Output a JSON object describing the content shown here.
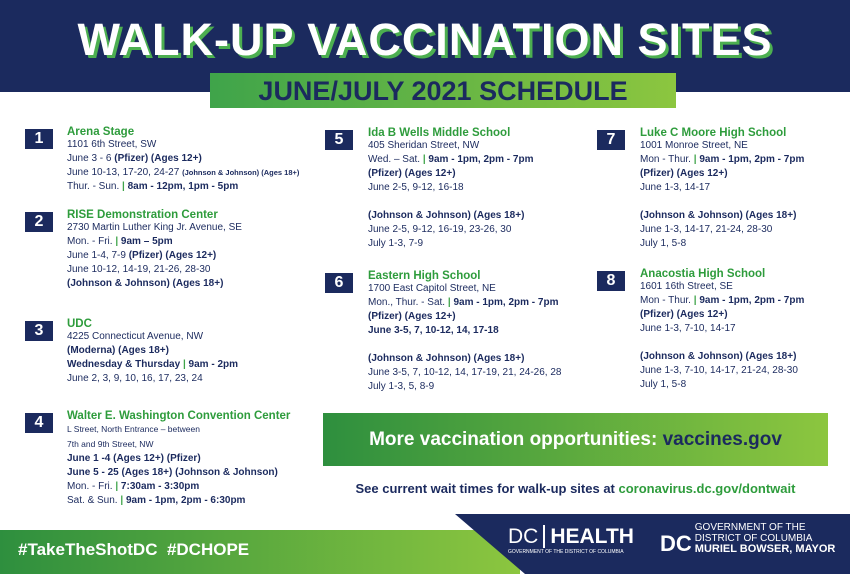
{
  "header": {
    "title": "WALK-UP VACCINATION SITES",
    "subtitle": "JUNE/JULY 2021 SCHEDULE"
  },
  "sites": [
    {
      "number": 1,
      "name": "Arena Stage",
      "blocks": [
        [
          [
            {
              "t": "1101 6th Street, SW"
            }
          ],
          [
            {
              "t": "June 3 - 6 "
            },
            {
              "t": "(Pfizer) (Ages 12+)",
              "s": "b"
            }
          ],
          [
            {
              "t": "June 10-13, 17-20, 24-27 "
            },
            {
              "t": "(Johnson & Johnson) (Ages 18+)",
              "s": "sm"
            }
          ],
          [
            {
              "t": "Thur. - Sun. "
            },
            {
              "t": "|",
              "s": "p"
            },
            {
              "t": " 8am - 12pm, 1pm - 5pm",
              "s": "b"
            }
          ]
        ]
      ]
    },
    {
      "number": 2,
      "name": "RISE Demonstration Center",
      "blocks": [
        [
          [
            {
              "t": "2730 Martin Luther King Jr. Avenue, SE"
            }
          ],
          [
            {
              "t": "Mon. - Fri. "
            },
            {
              "t": "|",
              "s": "p"
            },
            {
              "t": " 9am – 5pm",
              "s": "b"
            }
          ],
          [
            {
              "t": "June 1-4, 7-9 "
            },
            {
              "t": "(Pfizer) (Ages 12+)",
              "s": "b"
            }
          ],
          [
            {
              "t": "June 10-12, 14-19, 21-26, 28-30"
            }
          ],
          [
            {
              "t": "(Johnson & Johnson) (Ages 18+)",
              "s": "b"
            }
          ]
        ]
      ]
    },
    {
      "number": 3,
      "name": "UDC",
      "blocks": [
        [
          [
            {
              "t": "4225 Connecticut Avenue, NW"
            }
          ],
          [
            {
              "t": "(Moderna) (Ages 18+)",
              "s": "b"
            }
          ],
          [
            {
              "t": "Wednesday & Thursday ",
              "s": "b"
            },
            {
              "t": "|",
              "s": "p"
            },
            {
              "t": " 9am - 2pm",
              "s": "b"
            }
          ],
          [
            {
              "t": "June 2, 3, 9, 10, 16, 17, 23, 24"
            }
          ]
        ]
      ]
    },
    {
      "number": 4,
      "name": "Walter E. Washington Convention Center",
      "blocks": [
        [
          [
            {
              "t": "L Street, North Entrance – between",
              "s": "small"
            }
          ],
          [
            {
              "t": "7th and 9th Street, NW",
              "s": "small"
            }
          ],
          [
            {
              "t": "June 1 -4 (Ages 12+) (Pfizer)",
              "s": "b"
            }
          ],
          [
            {
              "t": "June 5 - 25 (Ages 18+) (Johnson & Johnson)",
              "s": "b"
            }
          ],
          [
            {
              "t": "Mon. - Fri. "
            },
            {
              "t": "|",
              "s": "p"
            },
            {
              "t": " 7:30am - 3:30pm",
              "s": "b"
            }
          ],
          [
            {
              "t": "Sat. & Sun. "
            },
            {
              "t": "|",
              "s": "p"
            },
            {
              "t": " 9am - 1pm, 2pm - 6:30pm",
              "s": "b"
            }
          ]
        ]
      ]
    },
    {
      "number": 5,
      "name": "Ida B Wells Middle School",
      "blocks": [
        [
          [
            {
              "t": "405 Sheridan Street, NW"
            }
          ],
          [
            {
              "t": "Wed. – Sat. "
            },
            {
              "t": "|",
              "s": "p"
            },
            {
              "t": " 9am - 1pm, 2pm - 7pm",
              "s": "b"
            }
          ],
          [
            {
              "t": "(Pfizer) (Ages 12+)",
              "s": "b"
            }
          ],
          [
            {
              "t": "June 2-5, 9-12, 16-18"
            }
          ]
        ],
        [
          [
            {
              "t": "(Johnson & Johnson) (Ages 18+)",
              "s": "b"
            }
          ],
          [
            {
              "t": "June 2-5, 9-12, 16-19, 23-26, 30"
            }
          ],
          [
            {
              "t": "July 1-3, 7-9"
            }
          ]
        ]
      ]
    },
    {
      "number": 6,
      "name": "Eastern High School",
      "blocks": [
        [
          [
            {
              "t": "1700 East Capitol Street, NE"
            }
          ],
          [
            {
              "t": "Mon., Thur. - Sat. "
            },
            {
              "t": "|",
              "s": "p"
            },
            {
              "t": " 9am - 1pm, 2pm - 7pm",
              "s": "b"
            }
          ],
          [
            {
              "t": "(Pfizer) (Ages 12+)",
              "s": "b"
            }
          ],
          [
            {
              "t": "June 3-5, 7, 10-12, 14, 17-18",
              "s": "b"
            }
          ]
        ],
        [
          [
            {
              "t": "(Johnson & Johnson) (Ages 18+)",
              "s": "b"
            }
          ],
          [
            {
              "t": "June 3-5, 7, 10-12, 14, 17-19, 21, 24-26, 28"
            }
          ],
          [
            {
              "t": "July 1-3, 5, 8-9"
            }
          ]
        ]
      ]
    },
    {
      "number": 7,
      "name": "Luke C Moore High School",
      "blocks": [
        [
          [
            {
              "t": "1001 Monroe Street, NE"
            }
          ],
          [
            {
              "t": "Mon - Thur. "
            },
            {
              "t": "|",
              "s": "p"
            },
            {
              "t": " 9am - 1pm, 2pm - 7pm",
              "s": "b"
            }
          ],
          [
            {
              "t": "(Pfizer) (Ages 12+)",
              "s": "b"
            }
          ],
          [
            {
              "t": "June 1-3, 14-17"
            }
          ]
        ],
        [
          [
            {
              "t": "(Johnson & Johnson) (Ages 18+)",
              "s": "b"
            }
          ],
          [
            {
              "t": "June 1-3, 14-17, 21-24, 28-30"
            }
          ],
          [
            {
              "t": "July 1, 5-8"
            }
          ]
        ]
      ]
    },
    {
      "number": 8,
      "name": "Anacostia High School",
      "blocks": [
        [
          [
            {
              "t": "1601 16th Street, SE"
            }
          ],
          [
            {
              "t": "Mon - Thur. "
            },
            {
              "t": "|",
              "s": "p"
            },
            {
              "t": " 9am - 1pm, 2pm - 7pm",
              "s": "b"
            }
          ],
          [
            {
              "t": "(Pfizer) (Ages 12+)",
              "s": "b"
            }
          ],
          [
            {
              "t": "June 1-3, 7-10, 14-17"
            }
          ]
        ],
        [
          [
            {
              "t": "(Johnson & Johnson) (Ages 18+)",
              "s": "b"
            }
          ],
          [
            {
              "t": "June 1-3, 7-10, 14-17, 21-24, 28-30"
            }
          ],
          [
            {
              "t": "July 1, 5-8"
            }
          ]
        ]
      ]
    }
  ],
  "banner": {
    "text": "More vaccination opportunities: ",
    "link": "vaccines.gov"
  },
  "wait": {
    "text": "See current wait times for walk-up sites at ",
    "link": "coronavirus.dc.gov/dontwait"
  },
  "footer": {
    "hashtags": [
      "#TakeTheShotDC",
      "#DCHOPE"
    ],
    "dc_health": {
      "dc": "DC",
      "health": "HEALTH",
      "sub": "GOVERNMENT OF THE DISTRICT OF COLUMBIA"
    },
    "mayor": {
      "line1": "GOVERNMENT OF THE",
      "line2": "DISTRICT OF COLUMBIA",
      "dc": "DC",
      "line3": "MURIEL BOWSER, MAYOR"
    }
  }
}
